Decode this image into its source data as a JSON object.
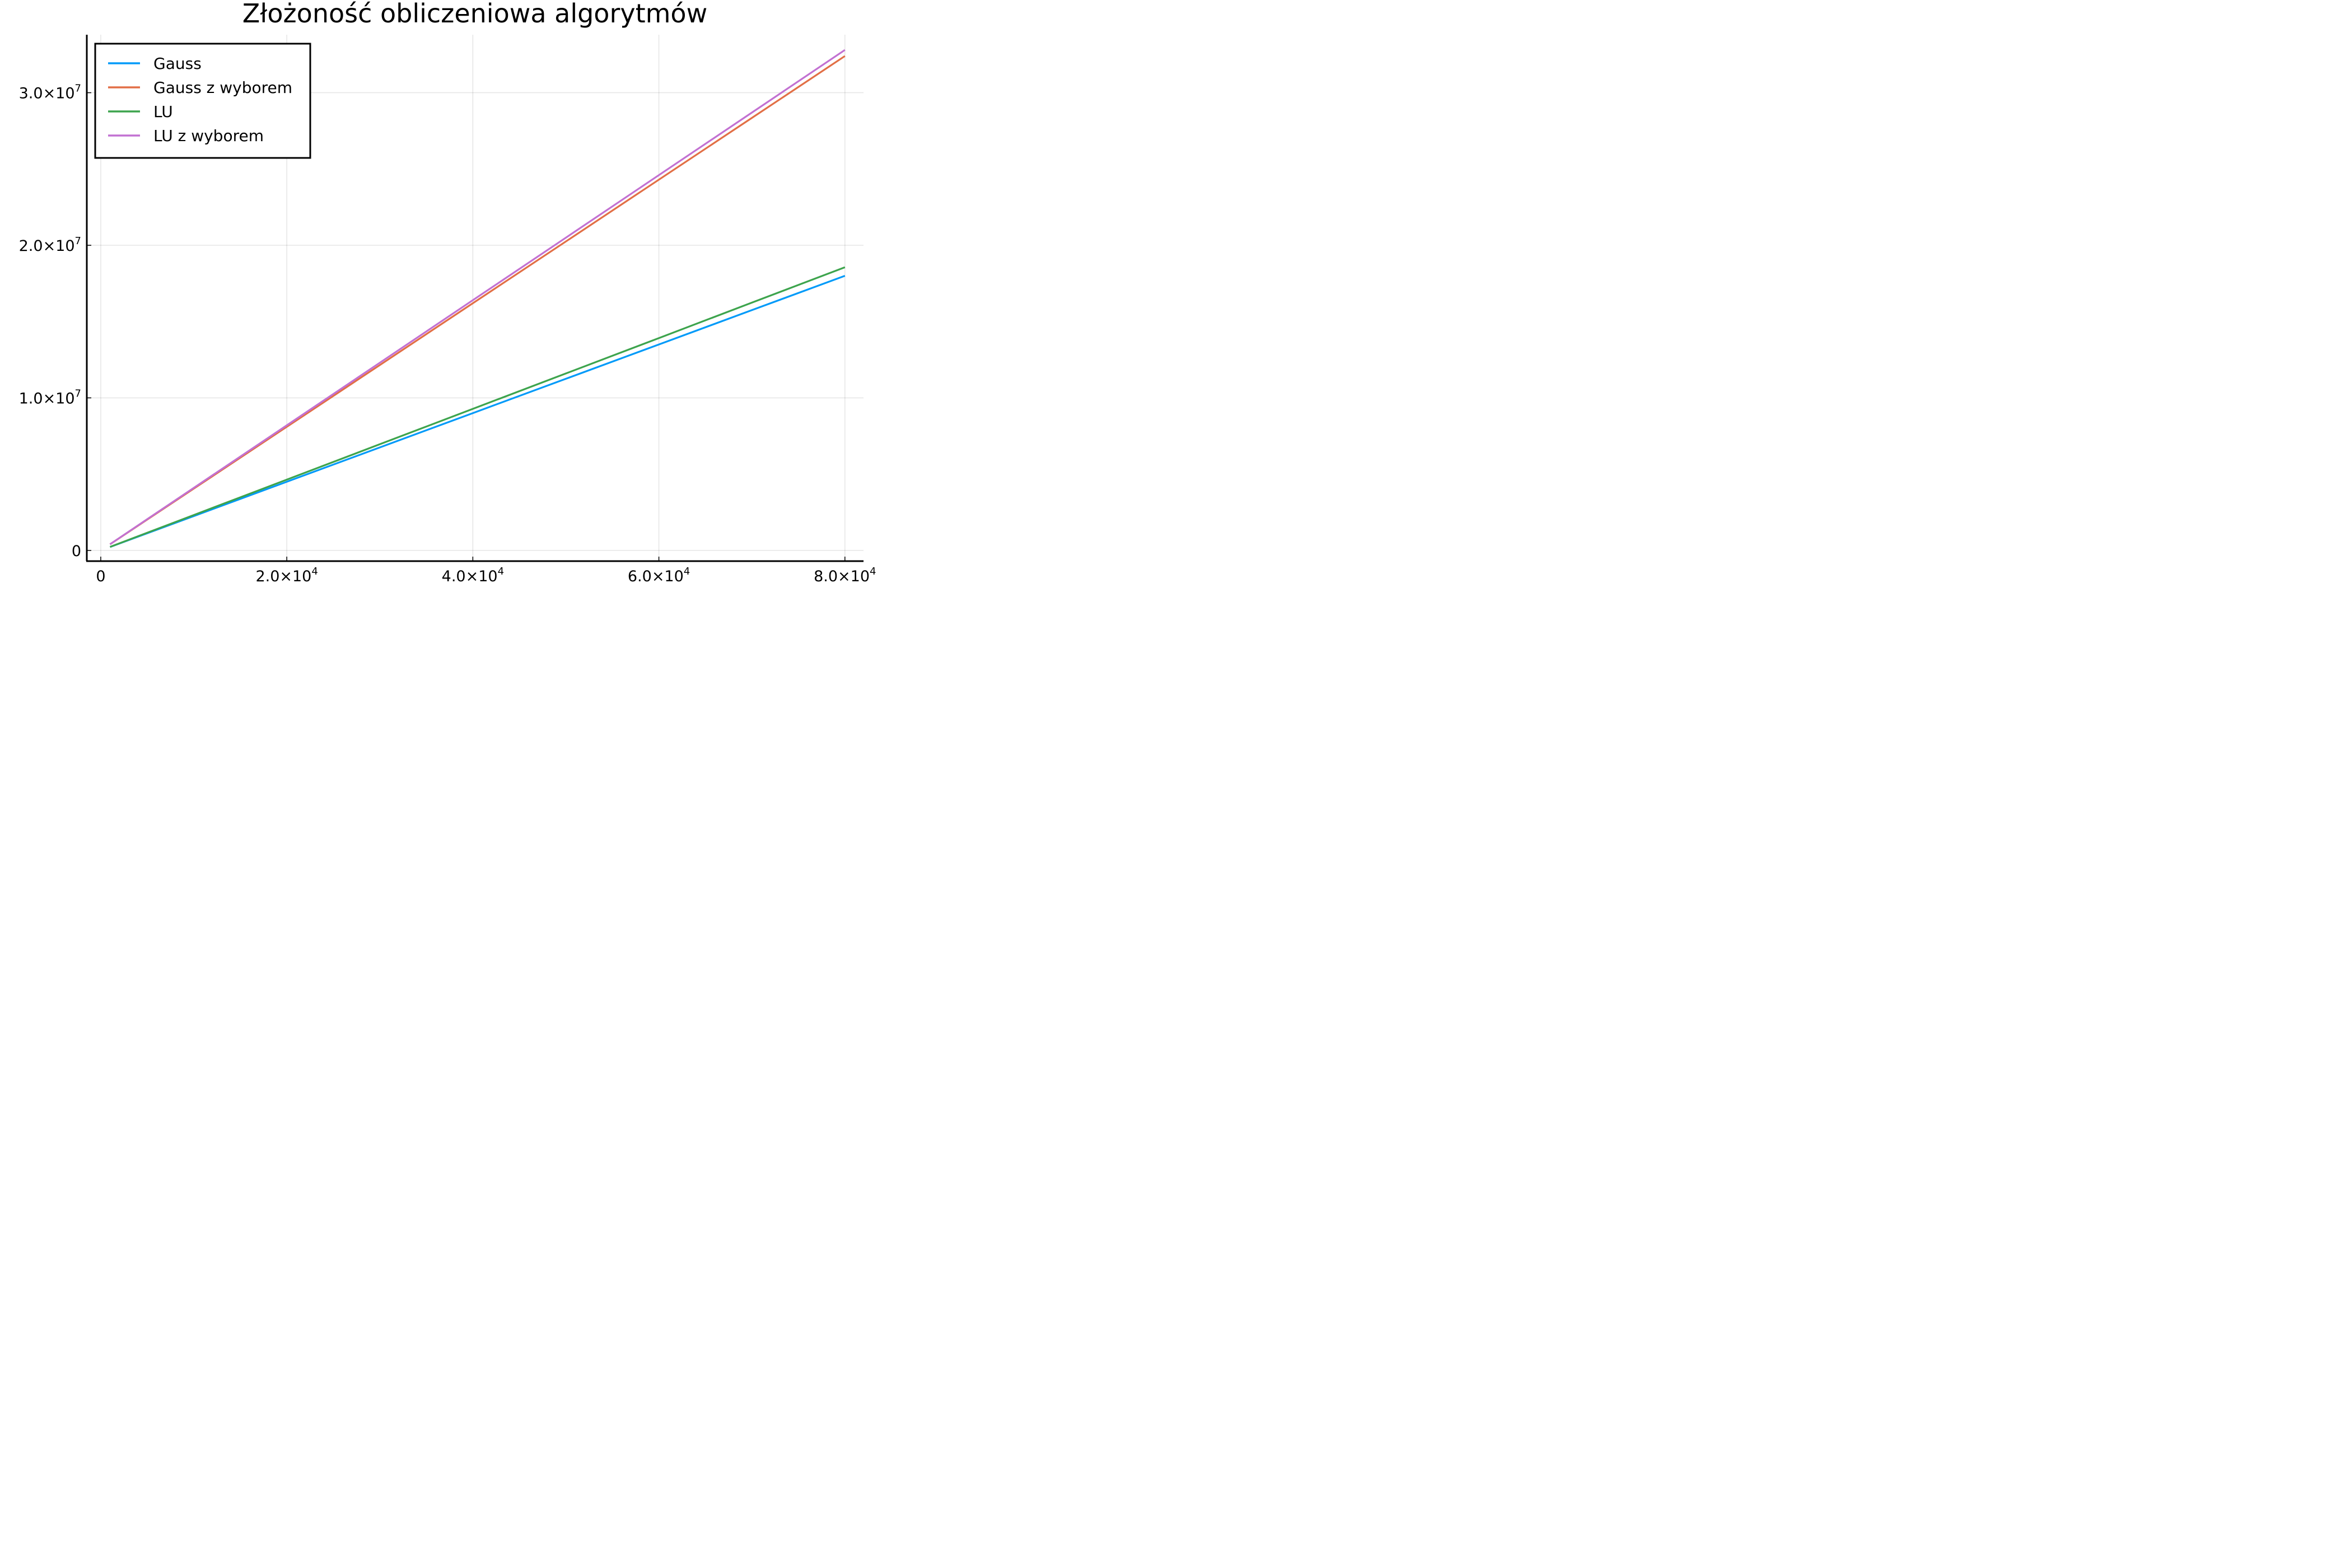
{
  "chart_data": {
    "type": "line",
    "title": "Złożoność obliczeniowa algorytmów",
    "xlabel": "",
    "ylabel": "",
    "xlim": [
      -1500,
      82000
    ],
    "ylim": [
      -700000,
      33800000
    ],
    "grid": true,
    "legend_position": "top-left",
    "x_ticks": [
      {
        "value": 0,
        "label": "0",
        "exp": ""
      },
      {
        "value": 20000,
        "label": "2.0×10",
        "exp": "4"
      },
      {
        "value": 40000,
        "label": "4.0×10",
        "exp": "4"
      },
      {
        "value": 60000,
        "label": "6.0×10",
        "exp": "4"
      },
      {
        "value": 80000,
        "label": "8.0×10",
        "exp": "4"
      }
    ],
    "y_ticks": [
      {
        "value": 0,
        "label": "0",
        "exp": ""
      },
      {
        "value": 10000000,
        "label": "1.0×10",
        "exp": "7"
      },
      {
        "value": 20000000,
        "label": "2.0×10",
        "exp": "7"
      },
      {
        "value": 30000000,
        "label": "3.0×10",
        "exp": "7"
      }
    ],
    "series": [
      {
        "name": "Gauss",
        "color": "#009af9",
        "x": [
          1000,
          10000,
          20000,
          30000,
          40000,
          50000,
          60000,
          70000,
          80000
        ],
        "y": [
          225000,
          2250000,
          4500000,
          6750000,
          9000000,
          11250000,
          13500000,
          15750000,
          18000000
        ]
      },
      {
        "name": "Gauss z wyborem",
        "color": "#e26f46",
        "x": [
          1000,
          10000,
          20000,
          30000,
          40000,
          50000,
          60000,
          70000,
          80000
        ],
        "y": [
          405000,
          4050000,
          8100000,
          12150000,
          16200000,
          20250000,
          24300000,
          28350000,
          32400000
        ]
      },
      {
        "name": "LU",
        "color": "#3da44d",
        "x": [
          1000,
          10000,
          20000,
          30000,
          40000,
          50000,
          60000,
          70000,
          80000
        ],
        "y": [
          232000,
          2320000,
          4640000,
          6960000,
          9280000,
          11600000,
          13920000,
          16240000,
          18560000
        ]
      },
      {
        "name": "LU z wyborem",
        "color": "#c271d2",
        "x": [
          1000,
          10000,
          20000,
          30000,
          40000,
          50000,
          60000,
          70000,
          80000
        ],
        "y": [
          410000,
          4100000,
          8200000,
          12300000,
          16400000,
          20500000,
          24600000,
          28700000,
          32800000
        ]
      }
    ]
  }
}
